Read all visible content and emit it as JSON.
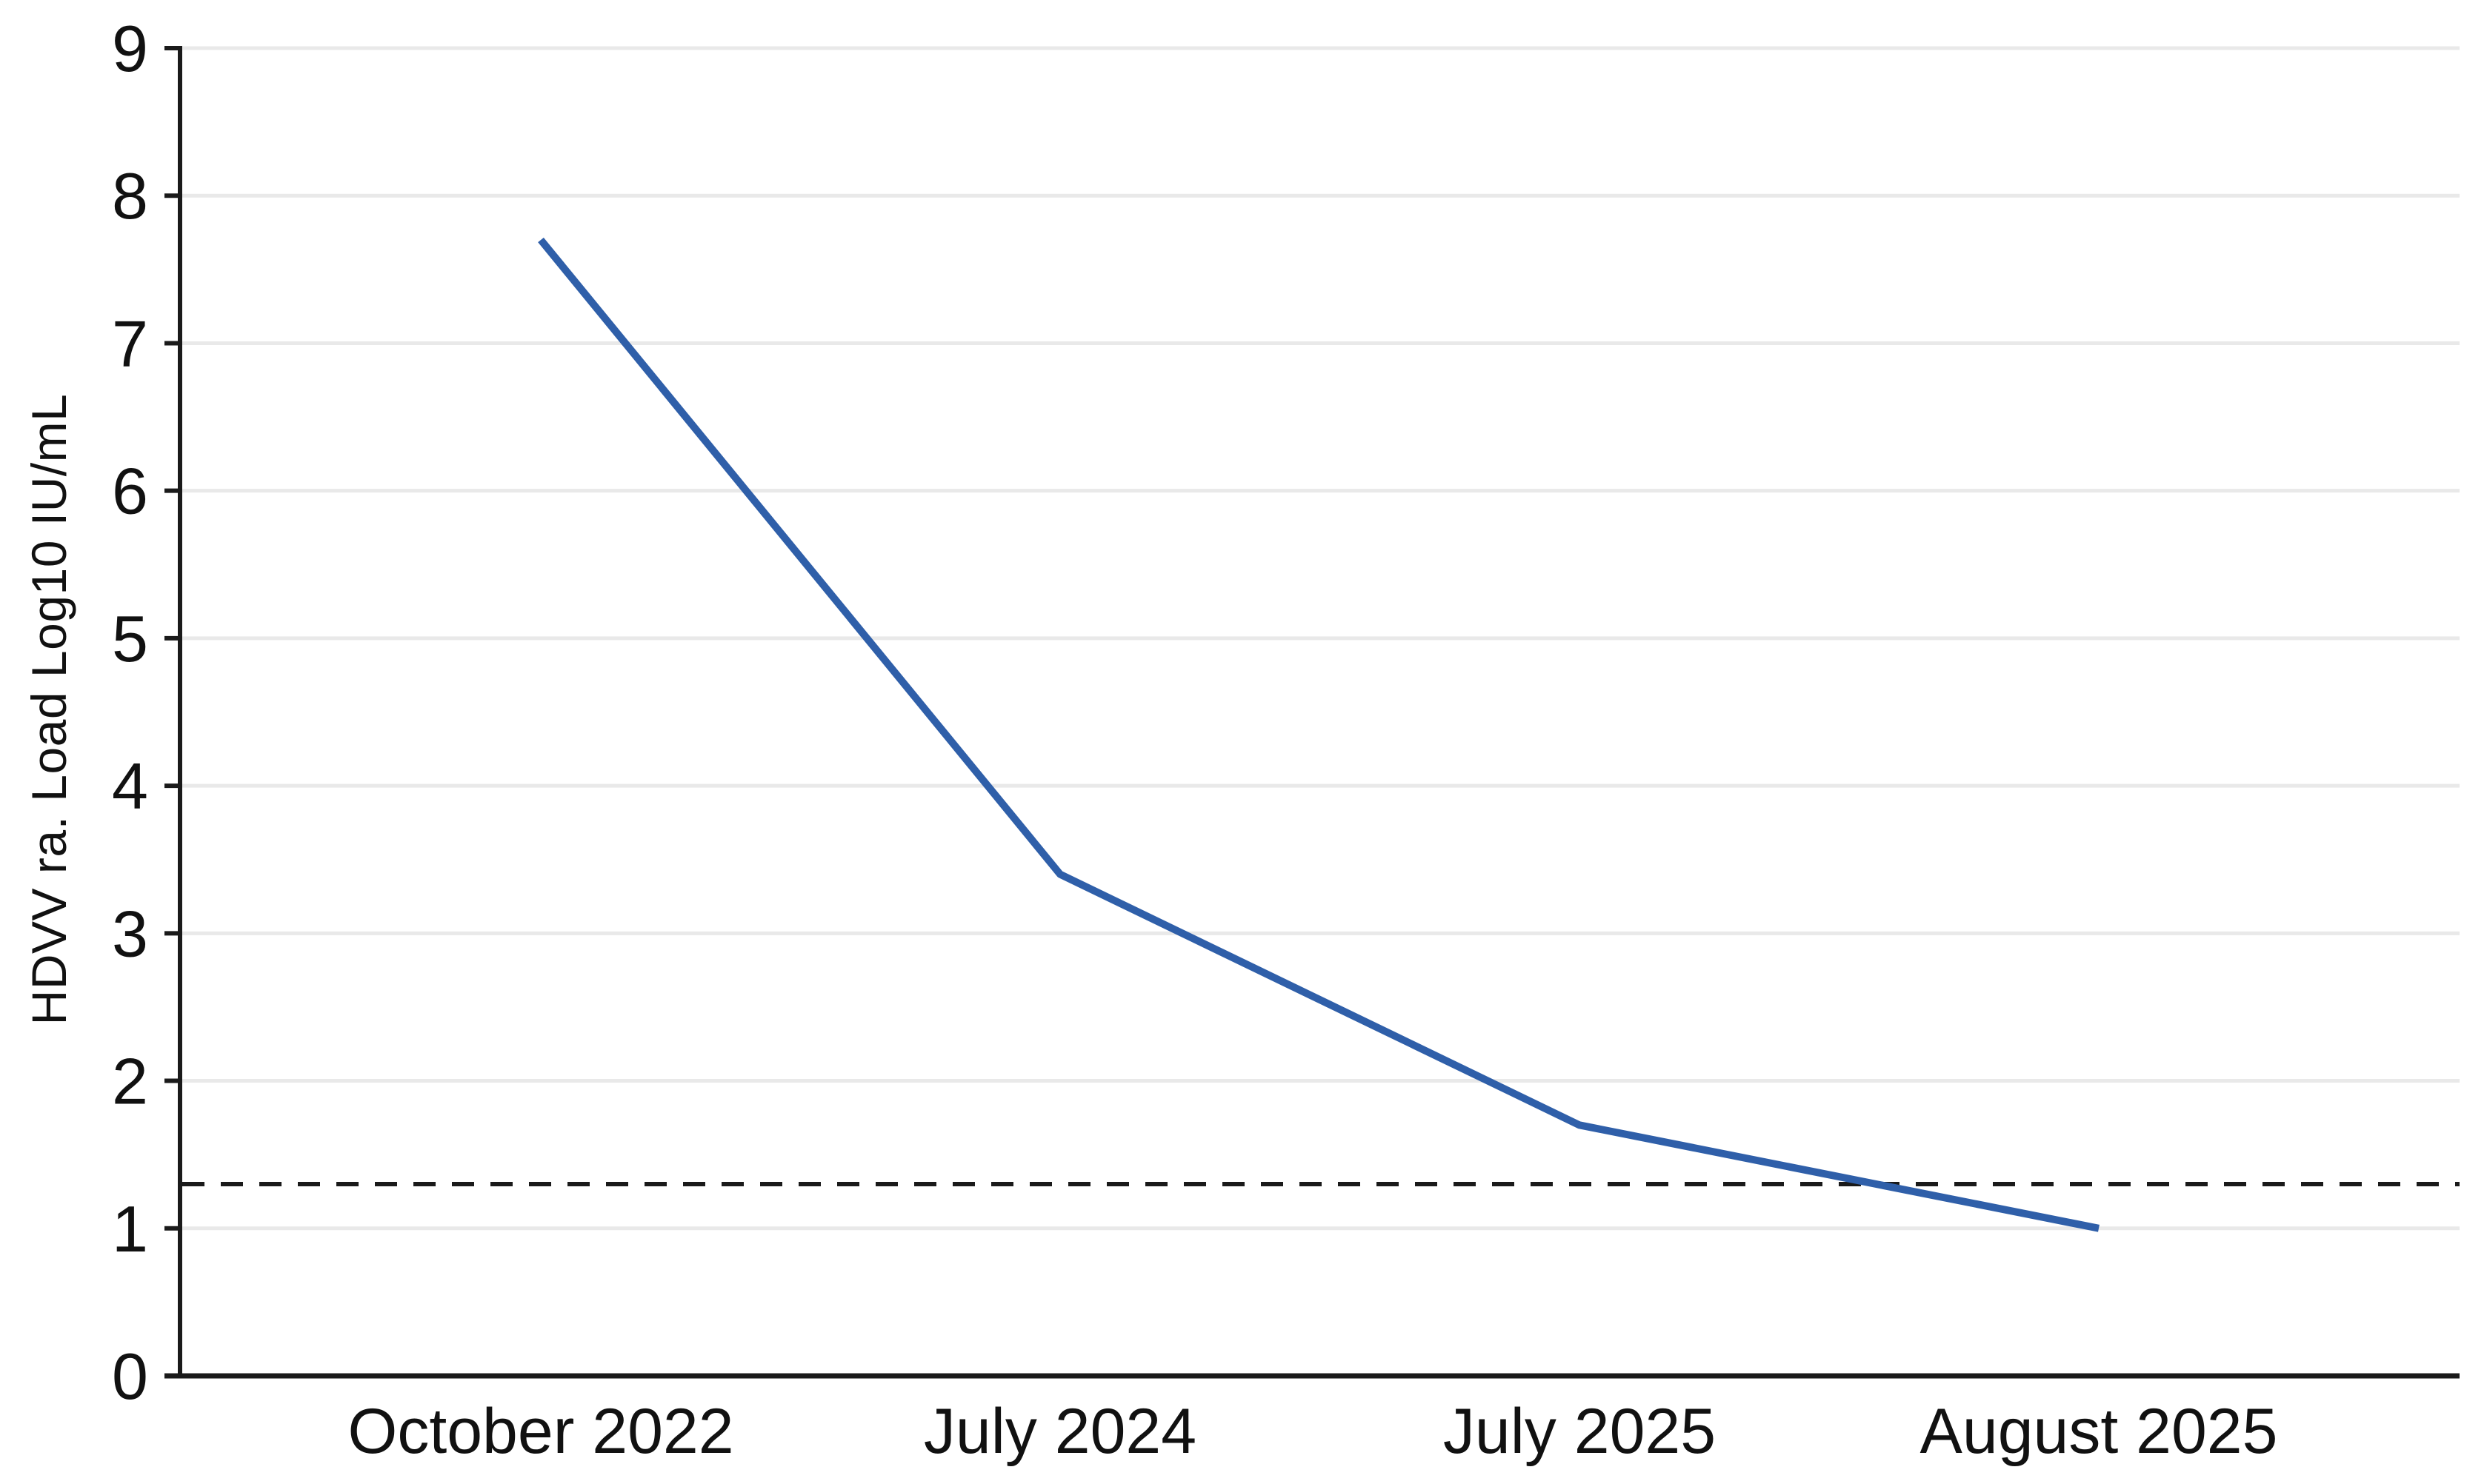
{
  "chart_data": {
    "type": "line",
    "title": "",
    "xlabel": "",
    "ylabel": "HDVV ra. Load Log10 IU/mL",
    "categories": [
      "October 2022",
      "July 2024",
      "July 2025",
      "August 2025"
    ],
    "series": [
      {
        "values": [
          7.7,
          3.4,
          1.7,
          1.0
        ]
      }
    ],
    "ylim": [
      0,
      9
    ],
    "yticks": [
      0,
      1,
      2,
      3,
      4,
      5,
      6,
      7,
      8,
      9
    ],
    "threshold": {
      "value": 1.3,
      "style": "dashed"
    },
    "grid": "horizontal",
    "legend": "none",
    "colors": {
      "line": "#2f5fa9",
      "grid": "#e9e9e9",
      "axis": "#1a1a1a",
      "threshold": "#1a1a1a",
      "text": "#111111",
      "background": "#ffffff"
    }
  }
}
